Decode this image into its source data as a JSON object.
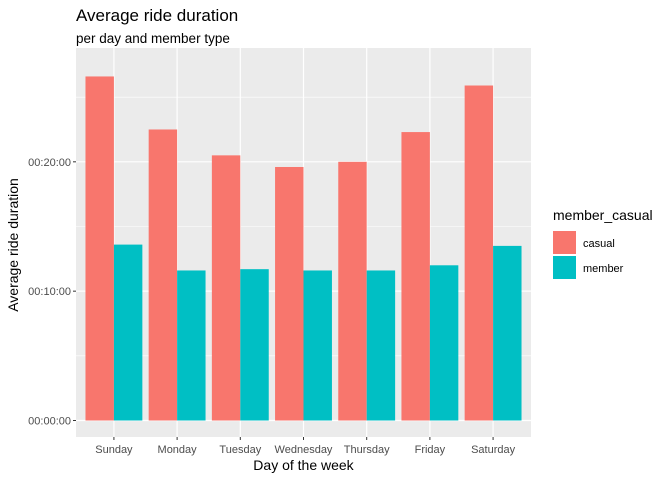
{
  "chart_data": {
    "type": "bar",
    "title": "Average ride duration",
    "subtitle": "per day and member type",
    "xlabel": "Day of the week",
    "ylabel": "Average ride duration",
    "categories": [
      "Sunday",
      "Monday",
      "Tuesday",
      "Wednesday",
      "Thursday",
      "Friday",
      "Saturday"
    ],
    "y_unit": "minutes",
    "ylim": [
      0,
      28.8
    ],
    "y_ticks": [
      {
        "value": 0,
        "label": "00:00:00"
      },
      {
        "value": 10,
        "label": "00:10:00"
      },
      {
        "value": 20,
        "label": "00:20:00"
      }
    ],
    "legend": {
      "title": "member_casual",
      "position": "right"
    },
    "grid": true,
    "series": [
      {
        "name": "casual",
        "color": "#F8766D",
        "values": [
          26.6,
          22.5,
          20.5,
          19.6,
          20.0,
          22.3,
          25.9
        ]
      },
      {
        "name": "member",
        "color": "#00BFC4",
        "values": [
          13.6,
          11.6,
          11.7,
          11.6,
          11.6,
          12.0,
          13.5
        ]
      }
    ]
  }
}
